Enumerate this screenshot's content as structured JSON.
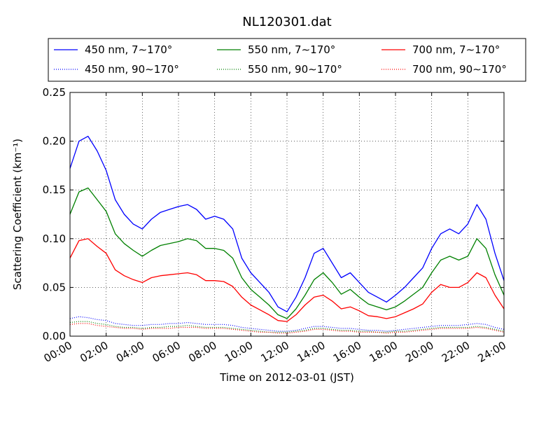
{
  "chart_data": {
    "type": "line",
    "title": "NL120301.dat",
    "xlabel": "Time on 2012-03-01 (JST)",
    "ylabel": "Scattering Coefficient (km⁻¹)",
    "xlim": [
      "00:00",
      "24:00"
    ],
    "ylim": [
      0,
      0.25
    ],
    "x_ticks": [
      "00:00",
      "02:00",
      "04:00",
      "06:00",
      "08:00",
      "10:00",
      "12:00",
      "14:00",
      "16:00",
      "18:00",
      "20:00",
      "22:00",
      "24:00"
    ],
    "y_ticks": [
      "0.00",
      "0.05",
      "0.10",
      "0.15",
      "0.20",
      "0.25"
    ],
    "grid": true,
    "legend_position": "top",
    "x": [
      "00:00",
      "00:30",
      "01:00",
      "01:30",
      "02:00",
      "02:30",
      "03:00",
      "03:30",
      "04:00",
      "04:30",
      "05:00",
      "05:30",
      "06:00",
      "06:30",
      "07:00",
      "07:30",
      "08:00",
      "08:30",
      "09:00",
      "09:30",
      "10:00",
      "10:30",
      "11:00",
      "11:30",
      "12:00",
      "12:30",
      "13:00",
      "13:30",
      "14:00",
      "14:30",
      "15:00",
      "15:30",
      "16:00",
      "16:30",
      "17:00",
      "17:30",
      "18:00",
      "18:30",
      "19:00",
      "19:30",
      "20:00",
      "20:30",
      "21:00",
      "21:30",
      "22:00",
      "22:30",
      "23:00",
      "23:30",
      "24:00"
    ],
    "series": [
      {
        "name": "450 nm, 7∼170°",
        "color": "#0000ff",
        "style": "solid",
        "values": [
          0.172,
          0.2,
          0.205,
          0.19,
          0.17,
          0.14,
          0.125,
          0.115,
          0.11,
          0.12,
          0.127,
          0.13,
          0.133,
          0.135,
          0.13,
          0.12,
          0.123,
          0.12,
          0.11,
          0.08,
          0.065,
          0.055,
          0.045,
          0.03,
          0.025,
          0.04,
          0.06,
          0.085,
          0.09,
          0.075,
          0.06,
          0.065,
          0.055,
          0.045,
          0.04,
          0.035,
          0.042,
          0.05,
          0.06,
          0.07,
          0.09,
          0.105,
          0.11,
          0.105,
          0.115,
          0.135,
          0.12,
          0.085,
          0.057
        ]
      },
      {
        "name": "450 nm, 90∼170°",
        "color": "#0000ff",
        "style": "dotted",
        "values": [
          0.018,
          0.02,
          0.019,
          0.017,
          0.016,
          0.013,
          0.012,
          0.011,
          0.011,
          0.012,
          0.012,
          0.013,
          0.013,
          0.014,
          0.013,
          0.012,
          0.012,
          0.012,
          0.011,
          0.009,
          0.008,
          0.007,
          0.006,
          0.005,
          0.005,
          0.006,
          0.008,
          0.01,
          0.01,
          0.009,
          0.008,
          0.008,
          0.007,
          0.006,
          0.006,
          0.005,
          0.006,
          0.007,
          0.008,
          0.009,
          0.01,
          0.011,
          0.011,
          0.011,
          0.012,
          0.013,
          0.012,
          0.009,
          0.007
        ]
      },
      {
        "name": "550 nm, 7∼170°",
        "color": "#008000",
        "style": "solid",
        "values": [
          0.125,
          0.148,
          0.152,
          0.14,
          0.128,
          0.105,
          0.095,
          0.088,
          0.082,
          0.088,
          0.093,
          0.095,
          0.097,
          0.1,
          0.098,
          0.09,
          0.09,
          0.088,
          0.08,
          0.06,
          0.048,
          0.04,
          0.032,
          0.022,
          0.018,
          0.028,
          0.042,
          0.058,
          0.065,
          0.055,
          0.043,
          0.048,
          0.04,
          0.033,
          0.03,
          0.027,
          0.03,
          0.036,
          0.043,
          0.05,
          0.065,
          0.078,
          0.082,
          0.078,
          0.082,
          0.1,
          0.09,
          0.063,
          0.042
        ]
      },
      {
        "name": "550 nm, 90∼170°",
        "color": "#008000",
        "style": "dotted",
        "values": [
          0.014,
          0.015,
          0.015,
          0.013,
          0.012,
          0.01,
          0.009,
          0.009,
          0.008,
          0.009,
          0.009,
          0.01,
          0.01,
          0.011,
          0.01,
          0.009,
          0.009,
          0.009,
          0.008,
          0.007,
          0.006,
          0.005,
          0.004,
          0.004,
          0.004,
          0.005,
          0.006,
          0.008,
          0.008,
          0.007,
          0.006,
          0.006,
          0.005,
          0.005,
          0.004,
          0.004,
          0.005,
          0.005,
          0.006,
          0.007,
          0.008,
          0.009,
          0.009,
          0.009,
          0.009,
          0.01,
          0.009,
          0.007,
          0.005
        ]
      },
      {
        "name": "700 nm, 7∼170°",
        "color": "#ff0000",
        "style": "solid",
        "values": [
          0.08,
          0.098,
          0.1,
          0.092,
          0.085,
          0.068,
          0.062,
          0.058,
          0.055,
          0.06,
          0.062,
          0.063,
          0.064,
          0.065,
          0.063,
          0.057,
          0.057,
          0.056,
          0.051,
          0.04,
          0.032,
          0.027,
          0.022,
          0.016,
          0.015,
          0.022,
          0.032,
          0.04,
          0.042,
          0.036,
          0.028,
          0.03,
          0.026,
          0.021,
          0.02,
          0.018,
          0.02,
          0.024,
          0.028,
          0.033,
          0.045,
          0.053,
          0.05,
          0.05,
          0.055,
          0.065,
          0.06,
          0.042,
          0.028
        ]
      },
      {
        "name": "700 nm, 90∼170°",
        "color": "#ff0000",
        "style": "dotted",
        "values": [
          0.012,
          0.013,
          0.013,
          0.011,
          0.01,
          0.009,
          0.008,
          0.008,
          0.007,
          0.008,
          0.008,
          0.008,
          0.009,
          0.009,
          0.009,
          0.008,
          0.008,
          0.008,
          0.007,
          0.006,
          0.005,
          0.004,
          0.004,
          0.003,
          0.003,
          0.004,
          0.005,
          0.007,
          0.007,
          0.006,
          0.005,
          0.005,
          0.004,
          0.004,
          0.004,
          0.003,
          0.004,
          0.004,
          0.005,
          0.006,
          0.007,
          0.008,
          0.008,
          0.008,
          0.008,
          0.009,
          0.008,
          0.006,
          0.004
        ]
      }
    ]
  }
}
